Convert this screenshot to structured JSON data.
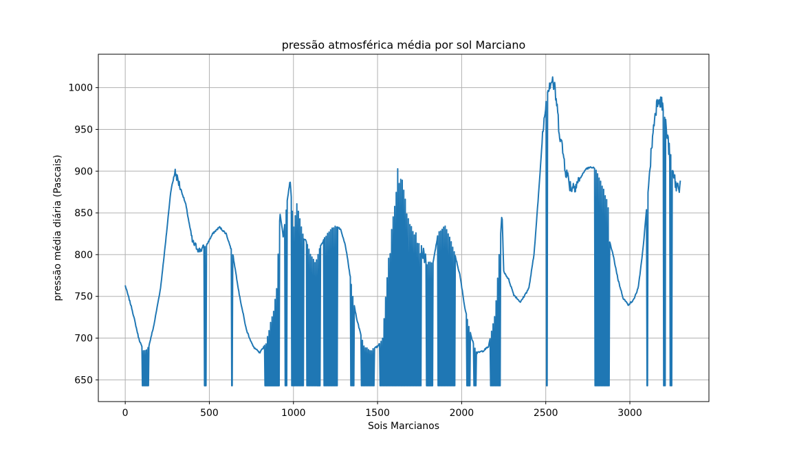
{
  "chart_data": {
    "type": "line",
    "title": "pressão atmosférica média por sol Marciano",
    "xlabel": "Sois Marcianos",
    "ylabel": "pressão média diária (Pascais)",
    "xlim": [
      -160,
      3470
    ],
    "ylim": [
      624,
      1040
    ],
    "xticks": [
      0,
      500,
      1000,
      1500,
      2000,
      2500,
      3000
    ],
    "yticks": [
      650,
      700,
      750,
      800,
      850,
      900,
      950,
      1000
    ],
    "grid": true,
    "series": [
      {
        "name": "",
        "color": "#1f77b4",
        "base": 643,
        "envelope": [
          [
            0,
            763
          ],
          [
            40,
            735
          ],
          [
            80,
            700
          ],
          [
            110,
            683
          ],
          [
            140,
            690
          ],
          [
            170,
            715
          ],
          [
            210,
            760
          ],
          [
            240,
            815
          ],
          [
            270,
            875
          ],
          [
            295,
            900
          ],
          [
            320,
            885
          ],
          [
            360,
            860
          ],
          [
            400,
            815
          ],
          [
            440,
            805
          ],
          [
            480,
            810
          ],
          [
            520,
            825
          ],
          [
            560,
            833
          ],
          [
            600,
            825
          ],
          [
            640,
            800
          ],
          [
            680,
            750
          ],
          [
            720,
            710
          ],
          [
            760,
            690
          ],
          [
            800,
            682
          ],
          [
            840,
            695
          ],
          [
            860,
            715
          ],
          [
            880,
            730
          ],
          [
            900,
            760
          ],
          [
            920,
            850
          ],
          [
            940,
            820
          ],
          [
            960,
            860
          ],
          [
            980,
            890
          ],
          [
            1000,
            830
          ],
          [
            1020,
            860
          ],
          [
            1040,
            840
          ],
          [
            1060,
            820
          ],
          [
            1080,
            815
          ],
          [
            1100,
            800
          ],
          [
            1130,
            790
          ],
          [
            1160,
            810
          ],
          [
            1200,
            825
          ],
          [
            1250,
            835
          ],
          [
            1280,
            830
          ],
          [
            1310,
            810
          ],
          [
            1340,
            770
          ],
          [
            1360,
            740
          ],
          [
            1380,
            720
          ],
          [
            1420,
            690
          ],
          [
            1460,
            685
          ],
          [
            1500,
            690
          ],
          [
            1530,
            700
          ],
          [
            1560,
            780
          ],
          [
            1590,
            840
          ],
          [
            1620,
            900
          ],
          [
            1650,
            880
          ],
          [
            1680,
            850
          ],
          [
            1720,
            830
          ],
          [
            1760,
            805
          ],
          [
            1800,
            790
          ],
          [
            1830,
            790
          ],
          [
            1860,
            825
          ],
          [
            1900,
            835
          ],
          [
            1930,
            820
          ],
          [
            1960,
            800
          ],
          [
            1990,
            775
          ],
          [
            2020,
            735
          ],
          [
            2060,
            700
          ],
          [
            2090,
            682
          ],
          [
            2130,
            685
          ],
          [
            2160,
            690
          ],
          [
            2200,
            730
          ],
          [
            2230,
            820
          ],
          [
            2240,
            850
          ],
          [
            2250,
            780
          ],
          [
            2280,
            770
          ],
          [
            2310,
            752
          ],
          [
            2350,
            743
          ],
          [
            2400,
            760
          ],
          [
            2430,
            800
          ],
          [
            2460,
            880
          ],
          [
            2480,
            940
          ],
          [
            2500,
            985
          ],
          [
            2520,
            1005
          ],
          [
            2540,
            1010
          ],
          [
            2560,
            990
          ],
          [
            2580,
            950
          ],
          [
            2600,
            925
          ],
          [
            2620,
            900
          ],
          [
            2650,
            880
          ],
          [
            2680,
            885
          ],
          [
            2700,
            890
          ],
          [
            2740,
            903
          ],
          [
            2780,
            905
          ],
          [
            2800,
            900
          ],
          [
            2840,
            880
          ],
          [
            2870,
            860
          ],
          [
            2880,
            815
          ],
          [
            2900,
            800
          ],
          [
            2930,
            770
          ],
          [
            2960,
            748
          ],
          [
            2990,
            740
          ],
          [
            3020,
            745
          ],
          [
            3050,
            760
          ],
          [
            3080,
            810
          ],
          [
            3110,
            880
          ],
          [
            3130,
            930
          ],
          [
            3150,
            970
          ],
          [
            3170,
            990
          ],
          [
            3200,
            975
          ],
          [
            3220,
            945
          ],
          [
            3250,
            900
          ],
          [
            3280,
            880
          ],
          [
            3300,
            885
          ]
        ],
        "gaps": [
          [
            100,
            140
          ],
          [
            470,
            480
          ],
          [
            630,
            640
          ],
          [
            830,
            920
          ],
          [
            950,
            960
          ],
          [
            990,
            1060
          ],
          [
            1080,
            1160
          ],
          [
            1180,
            1260
          ],
          [
            1340,
            1360
          ],
          [
            1400,
            1480
          ],
          [
            1510,
            1760
          ],
          [
            1790,
            1830
          ],
          [
            1860,
            1960
          ],
          [
            2030,
            2050
          ],
          [
            2070,
            2090
          ],
          [
            2170,
            2230
          ],
          [
            2500,
            2510
          ],
          [
            2790,
            2880
          ],
          [
            3100,
            3110
          ],
          [
            3200,
            3210
          ],
          [
            3240,
            3250
          ]
        ],
        "noise": [
          [
            280,
            330,
            10
          ],
          [
            390,
            470,
            8
          ],
          [
            2480,
            2560,
            20
          ],
          [
            2560,
            2700,
            18
          ],
          [
            3120,
            3200,
            18
          ],
          [
            3200,
            3300,
            20
          ],
          [
            1560,
            1700,
            20
          ],
          [
            1700,
            1800,
            15
          ]
        ]
      }
    ]
  }
}
